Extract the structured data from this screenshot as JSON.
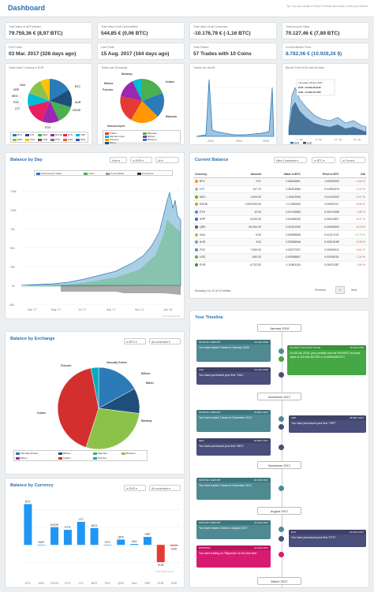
{
  "header": {
    "title": "Dashboard",
    "tip": "Tip: You can create a Public Portfolio and share it with your friends"
  },
  "stats": [
    {
      "label": "Total Value of all Portfolios",
      "value": "79.759,36 € (8,97 BTC)"
    },
    {
      "label": "Total Value of all Commodities",
      "value": "544,85 € (0,06 BTC)"
    },
    {
      "label": "Total Value of all Currencies",
      "value": "-10.176,78 € (-1,16 BTC)"
    },
    {
      "label": "Total Account Value",
      "value": "70.127,46 € (7,89 BTC)"
    }
  ],
  "stats2": [
    {
      "label": "First Trade:",
      "value": "03 Mar. 2017 (328 days ago)"
    },
    {
      "label": "Last Trade:",
      "value": "15 Aug. 2017 (164 days ago)"
    },
    {
      "label": "Total Trades:",
      "value": "57 Trades with 10 Coins"
    },
    {
      "label": "Current Bitcoin Price:",
      "value": "8.782,06 € (10.928,26 $)"
    }
  ],
  "mini": {
    "pie1_title": "Value each Currency in EUR",
    "pie1_labels": [
      "XAU",
      "XRP",
      "NEO",
      "PXC",
      "LTC",
      "ETH",
      "DOGE",
      "AUR",
      "BTC"
    ],
    "pie1_legend": [
      "BTC",
      "LTC",
      "NEO",
      "DOGE",
      "ETH",
      "XRP",
      "QRK",
      "XAU",
      "AUR",
      "PXC",
      "USD",
      "EUR"
    ],
    "pie2_title": "Trades per Exchange",
    "pie2_labels": [
      "Bitstamp",
      "Bitfinex",
      "Poloniex",
      "Manual Import",
      "Kraken",
      "Bitpanda"
    ],
    "pie2_legend": [
      "Kraken",
      "Bitpanda",
      "Manual Import",
      "Bitfinex",
      "Poloniex",
      "Bitstamp",
      "Bittrex"
    ],
    "trades_title": "Trades per Month",
    "trades_x": [
      "2014",
      "2016",
      "2018"
    ],
    "btc_title": "Bitcoin Price of the last 30 days",
    "btc_tooltip": {
      "date": "Thursday, 28 Dec 2017",
      "eur": "EUR: 12.930,06 EUR",
      "usd": "USD: 15.284,05 USD"
    },
    "btc_x": [
      "1. Jan",
      "8. Jan",
      "15. Jan",
      "22. Jan"
    ],
    "btc_legend": [
      "EUR",
      "USD"
    ]
  },
  "balance_day": {
    "title": "Balance by Day",
    "sel_area": "Area",
    "sel_cur": "in EUR",
    "sel_all": "All",
    "legend": [
      "Total Account Value",
      "Coins",
      "Commodities",
      "Currencies"
    ],
    "yticks": [
      "125k",
      "100k",
      "75k",
      "50k",
      "25k",
      "0k",
      "-25k"
    ],
    "xticks": [
      "Mar '17",
      "May '17",
      "Jul '17",
      "Sep '17",
      "Nov '17",
      "Jan '18"
    ],
    "credit": "CoinTracking.info"
  },
  "current_balance": {
    "title": "Current Balance",
    "sel_hide": "Hide 0 balances",
    "sel_btc": "in BTC",
    "sel_trend": "in Trend",
    "headers": [
      "Currency",
      "Amount",
      "Value in BTC",
      "Price in BTC",
      "24h"
    ],
    "rows": [
      {
        "cur": "BTC",
        "amount": "2.57",
        "value": "2.56644801",
        "price": "1.00000000",
        "ch": "-2.65 %",
        "color": "#f7931a"
      },
      {
        "cur": "LTC",
        "amount": "147.75",
        "value": "2.35204584",
        "price": "0.01591875",
        "ch": "-2.22 %",
        "color": "#b5b5b5"
      },
      {
        "cur": "NEO",
        "amount": "1,000.00",
        "value": "1.19422000",
        "price": "0.01194220",
        "ch": "-3.97 %",
        "color": "#58bf00"
      },
      {
        "cur": "DOGE",
        "amount": "1,000,000.00",
        "value": "1.17460000",
        "price": "0.00000117",
        "ch": "-5.05 %",
        "color": "#c2a633"
      },
      {
        "cur": "ETH",
        "amount": "10.00",
        "value": "0.94743983",
        "price": "0.09474398",
        "ch": "-1.56 %",
        "color": "#627eea"
      },
      {
        "cur": "XRP",
        "amount": "5,000.00",
        "value": "0.54186000",
        "price": "0.00010837",
        "ch": "-8.47 %",
        "color": "#346aa9"
      },
      {
        "cur": "QRK",
        "amount": "50,000.00",
        "value": "0.25161000",
        "price": "0.00000503",
        "ch": "-8.24 %",
        "color": "#5a5a5a"
      },
      {
        "cur": "XAU",
        "amount": "5.00",
        "value": "0.06085505",
        "price": "0.01217101",
        "ch": "+0.75 %",
        "color": "#d4af37"
      },
      {
        "cur": "AUR",
        "amount": "4.51",
        "value": "0.00086546",
        "price": "0.00019189",
        "ch": "-6.95 %",
        "color": "#999999"
      },
      {
        "cur": "PXC",
        "amount": "7,000.00",
        "value": "0.00077037",
        "price": "0.00000011",
        "ch": "-3.61 %",
        "color": "#4a90d9"
      },
      {
        "cur": "USD",
        "amount": "-590.00",
        "value": "-0.05398847",
        "price": "0.00009151",
        "ch": "-1.34 %",
        "color": "#6aa84f"
      },
      {
        "cur": "EUR",
        "amount": "-9,702.52",
        "value": "-1.10481140",
        "price": "0.00011387",
        "ch": "-1.56 %",
        "color": "#3c8b3c"
      }
    ],
    "footer": "Showing 1 to 12 of 12 entries",
    "prev": "Previous",
    "page": "1",
    "next": "Next"
  },
  "balance_exchange": {
    "title": "Balance by Exchange",
    "sel_btc": "in BTC",
    "sel_all": "All currencies",
    "labels": [
      "Poloniex",
      "Manually Entries",
      "Bitfinex",
      "Bittrex",
      "Kraken",
      "Bitstamp"
    ],
    "legend": [
      "Manually Entries",
      "Bitfinex",
      "Bitpanda",
      "Bitstamp",
      "Bittrex",
      "Kraken",
      "Poloniex"
    ]
  },
  "balance_currency": {
    "title": "Balance by Currency",
    "sel_eur": "in EUR",
    "sel_all": "All currencies",
    "credit": "CoinTracking.info"
  },
  "timeline": {
    "title": "Your Timeline",
    "dates": [
      "January 2018",
      "December 2017",
      "November 2017",
      "August 2017",
      "March 2017"
    ],
    "items": [
      {
        "type": "MONTHLY REPORT",
        "date": "29 JAN 2018",
        "text": "You have traded 3 times in January 2018."
      },
      {
        "type": "HIGHEST ACCOUNT VALUE",
        "date": "06 JAN 2018",
        "text": "On 06 Jan 2018, your portfolio had the HIGHEST account value of 110.000,84 EUR or 8,69644468 BTC"
      },
      {
        "type": "XAU",
        "date": "01 JAN 2018",
        "text": "You have purchased your first \"XAU\"."
      },
      {
        "type": "MONTHLY REPORT",
        "date": "31 DEC 2017",
        "text": "You have traded 1 times in December 2017."
      },
      {
        "type": "XRP",
        "date": "26 DEC 2017",
        "text": "You have purchased your first \"XRP\"."
      },
      {
        "type": "NEO",
        "date": "02 DEC 2017",
        "text": "You have purchased your first \"NEO\"."
      },
      {
        "type": "MONTHLY REPORT",
        "date": "30 NOV 2017",
        "text": "You have traded 1 times in November 2017."
      },
      {
        "type": "MONTHLY REPORT",
        "date": "31 AUG 2017",
        "text": "You have traded 4 times in August 2017."
      },
      {
        "type": "ETH",
        "date": "14 AUG 2017",
        "text": "You have purchased your first \"ETH\"."
      },
      {
        "type": "BITPANDA",
        "date": "14 AUG 2017",
        "text": "You were trading on \"Bitpanda\" for the first time."
      }
    ]
  },
  "chart_data": [
    {
      "type": "bar",
      "title": "Balance by Currency",
      "categories": [
        "BTC",
        "AUR",
        "DOGE",
        "ETH",
        "LTC",
        "NEO",
        "PXC",
        "QRK",
        "XAU",
        "XRP",
        "EUR",
        "USD"
      ],
      "values": [
        23000,
        4,
        10000,
        8500,
        13000,
        9500,
        2,
        3000,
        500,
        4500,
        -9700,
        -500
      ],
      "ylim": [
        -15000,
        25000
      ]
    },
    {
      "type": "pie",
      "title": "Balance by Exchange",
      "categories": [
        "Bitfinex",
        "Bitstamp",
        "Kraken",
        "Poloniex",
        "Manually Entries"
      ],
      "values": [
        10,
        28,
        42,
        3,
        17
      ]
    }
  ]
}
